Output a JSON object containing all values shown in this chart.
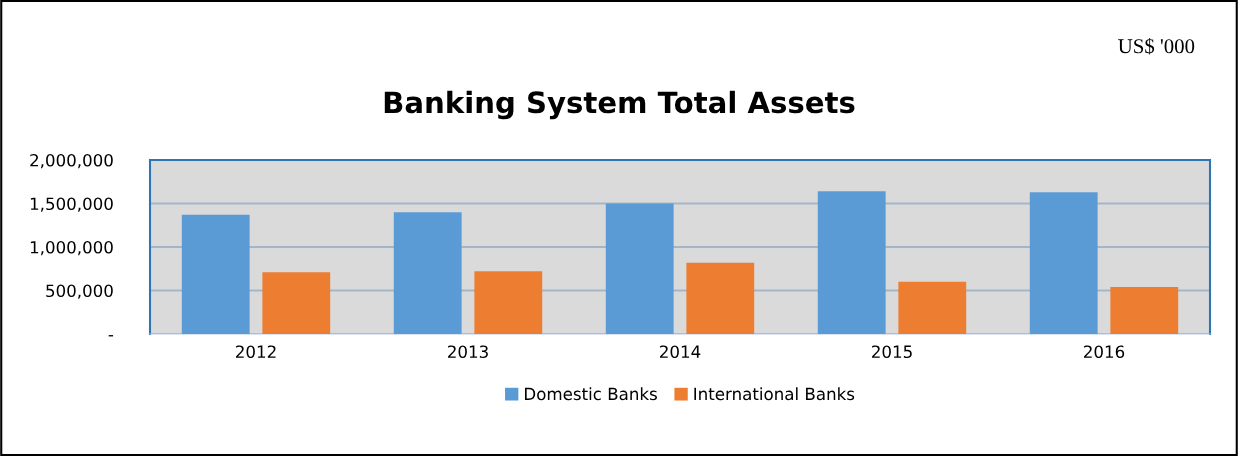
{
  "chart_data": {
    "type": "bar",
    "title": "Banking System Total Assets",
    "annotations": [
      "US$ '000"
    ],
    "categories": [
      "2012",
      "2013",
      "2014",
      "2015",
      "2016"
    ],
    "series": [
      {
        "name": "Domestic Banks",
        "color": "#5b9bd5",
        "values": [
          1370000,
          1400000,
          1500000,
          1640000,
          1630000
        ]
      },
      {
        "name": "International Banks",
        "color": "#ed7d31",
        "values": [
          710000,
          720000,
          820000,
          600000,
          540000
        ]
      }
    ],
    "ylim": [
      0,
      2000000
    ],
    "yticks": [
      {
        "value": 0,
        "label": "-"
      },
      {
        "value": 500000,
        "label": "500,000"
      },
      {
        "value": 1000000,
        "label": "1,000,000"
      },
      {
        "value": 1500000,
        "label": "1,500,000"
      },
      {
        "value": 2000000,
        "label": "2,000,000"
      }
    ],
    "grid": "y",
    "legend": "bottom"
  }
}
